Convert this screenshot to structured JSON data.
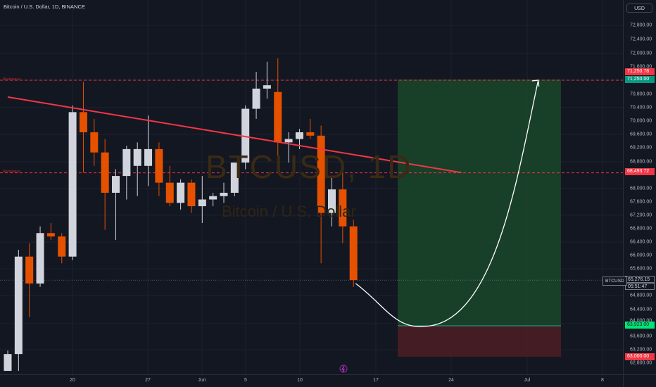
{
  "header": {
    "title": "Bitcoin / U.S. Dollar, 1D, BINANCE"
  },
  "currency": "USD",
  "watermark": {
    "ticker": "BTCUSD, 1D",
    "name": "Bitcoin / U.S. Dollar"
  },
  "price_axis": {
    "ticks": [
      "72,800.00",
      "72,400.00",
      "72,000.00",
      "71,600.00",
      "70,800.00",
      "70,400.00",
      "70,000.00",
      "69,600.00",
      "69,200.00",
      "68,800.00",
      "68,000.00",
      "67,600.00",
      "67,200.00",
      "66,800.00",
      "66,400.00",
      "66,000.00",
      "65,600.00",
      "64,800.00",
      "64,400.00",
      "64,000.00",
      "63,600.00",
      "63,200.00",
      "62,800.00"
    ],
    "badges": [
      {
        "label": "71,250.78",
        "color": "#f23645"
      },
      {
        "label": "71,250.00",
        "color": "#089981"
      },
      {
        "label": "68,493.72",
        "color": "#f23645"
      },
      {
        "label": "65,276.15",
        "color": "#ffffff"
      },
      {
        "label": "05:51:47",
        "color": "#ffffff"
      },
      {
        "label": "63,923.00",
        "color": "#00e676"
      },
      {
        "label": "63,000.00",
        "color": "#f23645"
      }
    ]
  },
  "symbol_tag": "BTCUSD",
  "time_axis": {
    "labels": [
      "20",
      "27",
      "Jun",
      "5",
      "10",
      "17",
      "24",
      "Jul",
      "8"
    ]
  },
  "levels": {
    "resistance_1": "Resistance",
    "resistance_2": "Resistance"
  },
  "colors": {
    "up": "#d1d4dc",
    "down": "#e65100",
    "trend": "#f23645",
    "target_zone": "#1b4d2b",
    "stop_zone": "#4a1e25"
  },
  "chart_data": {
    "type": "candlestick",
    "symbol": "BTCUSD",
    "interval": "1D",
    "ylim": [
      62600,
      73000
    ],
    "candles": [
      {
        "o": 62600,
        "h": 63200,
        "l": 62600,
        "c": 63100
      },
      {
        "o": 63100,
        "h": 66200,
        "l": 62600,
        "c": 66000
      },
      {
        "o": 66000,
        "h": 66400,
        "l": 64200,
        "c": 65200
      },
      {
        "o": 65200,
        "h": 66900,
        "l": 65100,
        "c": 66700
      },
      {
        "o": 66700,
        "h": 67000,
        "l": 66500,
        "c": 66600
      },
      {
        "o": 66600,
        "h": 66700,
        "l": 65800,
        "c": 66000
      },
      {
        "o": 66000,
        "h": 70500,
        "l": 65900,
        "c": 70300
      },
      {
        "o": 70300,
        "h": 71200,
        "l": 68500,
        "c": 69700
      },
      {
        "o": 69700,
        "h": 70100,
        "l": 68700,
        "c": 69100
      },
      {
        "o": 69100,
        "h": 69500,
        "l": 66800,
        "c": 67900
      },
      {
        "o": 67900,
        "h": 68600,
        "l": 66500,
        "c": 68400
      },
      {
        "o": 68400,
        "h": 69300,
        "l": 67700,
        "c": 69200
      },
      {
        "o": 68700,
        "h": 69400,
        "l": 67800,
        "c": 69200
      },
      {
        "o": 68700,
        "h": 70200,
        "l": 68100,
        "c": 69200
      },
      {
        "o": 69200,
        "h": 69400,
        "l": 67800,
        "c": 68200
      },
      {
        "o": 68200,
        "h": 68700,
        "l": 67500,
        "c": 67600
      },
      {
        "o": 67600,
        "h": 68300,
        "l": 67400,
        "c": 68200
      },
      {
        "o": 68200,
        "h": 68300,
        "l": 67300,
        "c": 67500
      },
      {
        "o": 67500,
        "h": 68400,
        "l": 67000,
        "c": 67700
      },
      {
        "o": 67700,
        "h": 67900,
        "l": 67500,
        "c": 67800
      },
      {
        "o": 67800,
        "h": 68200,
        "l": 67600,
        "c": 67900
      },
      {
        "o": 67900,
        "h": 68700,
        "l": 67800,
        "c": 68800
      },
      {
        "o": 68800,
        "h": 70500,
        "l": 68600,
        "c": 70400
      },
      {
        "o": 70400,
        "h": 71500,
        "l": 70100,
        "c": 71000
      },
      {
        "o": 71000,
        "h": 71800,
        "l": 70700,
        "c": 71100
      },
      {
        "o": 70900,
        "h": 71900,
        "l": 68700,
        "c": 69400
      },
      {
        "o": 69400,
        "h": 69700,
        "l": 68800,
        "c": 69500
      },
      {
        "o": 69500,
        "h": 69800,
        "l": 69200,
        "c": 69700
      },
      {
        "o": 69700,
        "h": 70100,
        "l": 69500,
        "c": 69600
      },
      {
        "o": 69600,
        "h": 69900,
        "l": 65800,
        "c": 67300
      },
      {
        "o": 67300,
        "h": 68400,
        "l": 66900,
        "c": 68000
      },
      {
        "o": 68000,
        "h": 68600,
        "l": 66400,
        "c": 66900
      },
      {
        "o": 66900,
        "h": 67100,
        "l": 65100,
        "c": 65300
      }
    ],
    "trend_line": [
      {
        "bar": 0,
        "price": 70750
      },
      {
        "bar": 42,
        "price": 68500
      }
    ],
    "resistance_levels": [
      71250,
      68493.72
    ],
    "long_position": {
      "entry": 63923,
      "target": 71250,
      "stop": 63000
    },
    "projection": [
      {
        "bar": 32.2,
        "price": 65200
      },
      {
        "bar": 38.5,
        "price": 63923
      },
      {
        "bar": 49.1,
        "price": 71250
      }
    ]
  }
}
